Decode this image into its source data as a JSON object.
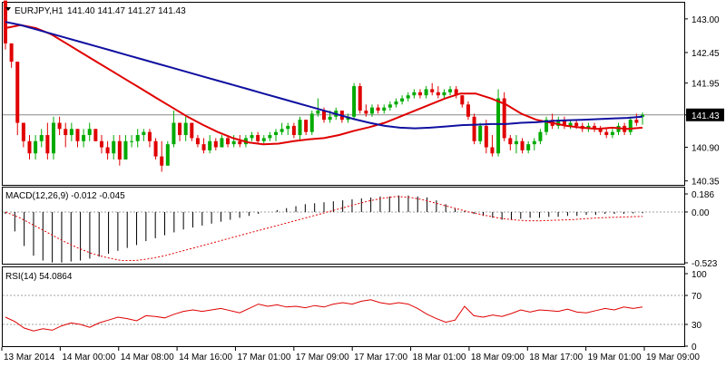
{
  "symbol_line": {
    "symbol": "EURJPY,H1",
    "ohlc": "141.40 141.47 141.27 141.43",
    "dropdown_icon": "triangle-down-icon"
  },
  "current_price": "141.43",
  "colors": {
    "bull_candle": "#00aa00",
    "bear_candle": "#e00000",
    "ma_fast": "#e00000",
    "ma_slow": "#1010a0",
    "macd_hist": "#000000",
    "macd_signal": "#e00000",
    "rsi_line": "#e00000",
    "grid": "#a0a0a0",
    "price_badge": "#000000"
  },
  "x_labels": [
    "13 Mar 2014",
    "14 Mar 00:00",
    "14 Mar 08:00",
    "14 Mar 16:00",
    "17 Mar 01:00",
    "17 Mar 09:00",
    "17 Mar 17:00",
    "18 Mar 01:00",
    "18 Mar 09:00",
    "18 Mar 17:00",
    "19 Mar 01:00",
    "19 Mar 09:00"
  ],
  "chart_data": [
    {
      "type": "candlestick",
      "title": "EURJPY,H1",
      "ylim": [
        140.3,
        143.25
      ],
      "y_ticks": [
        "143.00",
        "142.45",
        "141.95",
        "141.43",
        "140.90",
        "140.35"
      ],
      "current_price": 141.43,
      "candles_ohlc": [
        [
          143.3,
          143.3,
          142.5,
          142.6
        ],
        [
          142.6,
          142.6,
          142.2,
          142.3
        ],
        [
          142.3,
          142.3,
          141.1,
          141.3
        ],
        [
          141.3,
          141.3,
          140.9,
          141.0
        ],
        [
          141.0,
          141.1,
          140.7,
          140.8
        ],
        [
          140.8,
          141.1,
          140.7,
          141.0
        ],
        [
          141.0,
          141.2,
          140.9,
          141.1
        ],
        [
          141.1,
          141.3,
          140.7,
          140.8
        ],
        [
          140.8,
          141.4,
          140.7,
          141.3
        ],
        [
          141.3,
          141.4,
          141.1,
          141.2
        ],
        [
          141.2,
          141.3,
          140.9,
          141.1
        ],
        [
          141.1,
          141.3,
          141.0,
          141.2
        ],
        [
          141.2,
          141.2,
          140.9,
          141.0
        ],
        [
          141.0,
          141.2,
          140.9,
          141.1
        ],
        [
          141.1,
          141.3,
          141.0,
          141.2
        ],
        [
          141.2,
          141.2,
          141.0,
          141.0
        ],
        [
          141.0,
          141.1,
          140.8,
          140.9
        ],
        [
          140.9,
          141.0,
          140.7,
          140.8
        ],
        [
          140.8,
          141.1,
          140.7,
          141.0
        ],
        [
          141.0,
          141.1,
          140.6,
          140.7
        ],
        [
          140.7,
          141.1,
          140.7,
          141.0
        ],
        [
          141.0,
          141.1,
          140.9,
          141.0
        ],
        [
          141.0,
          141.2,
          140.9,
          141.1
        ],
        [
          141.1,
          141.2,
          141.0,
          141.15
        ],
        [
          141.15,
          141.2,
          140.9,
          141.0
        ],
        [
          141.0,
          141.05,
          140.7,
          140.75
        ],
        [
          140.75,
          141.0,
          140.5,
          140.6
        ],
        [
          140.6,
          141.0,
          140.6,
          140.95
        ],
        [
          140.95,
          141.5,
          140.9,
          141.3
        ],
        [
          141.3,
          141.3,
          141.0,
          141.1
        ],
        [
          141.1,
          141.4,
          141.0,
          141.3
        ],
        [
          141.3,
          141.3,
          141.0,
          141.05
        ],
        [
          141.05,
          141.1,
          140.9,
          140.95
        ],
        [
          140.95,
          141.05,
          140.8,
          140.85
        ],
        [
          140.85,
          141.1,
          140.8,
          141.0
        ],
        [
          141.0,
          141.05,
          140.85,
          140.9
        ],
        [
          140.9,
          141.1,
          140.9,
          141.05
        ],
        [
          141.05,
          141.1,
          140.9,
          140.95
        ],
        [
          140.95,
          141.1,
          140.9,
          141.0
        ],
        [
          141.0,
          141.1,
          140.9,
          140.95
        ],
        [
          140.95,
          141.1,
          140.9,
          141.05
        ],
        [
          141.05,
          141.15,
          141.0,
          141.1
        ],
        [
          141.1,
          141.15,
          140.95,
          141.0
        ],
        [
          141.0,
          141.1,
          140.95,
          141.05
        ],
        [
          141.05,
          141.15,
          141.0,
          141.1
        ],
        [
          141.1,
          141.2,
          141.0,
          141.15
        ],
        [
          141.15,
          141.3,
          141.1,
          141.2
        ],
        [
          141.2,
          141.3,
          141.1,
          141.25
        ],
        [
          141.25,
          141.3,
          141.05,
          141.1
        ],
        [
          141.1,
          141.4,
          141.0,
          141.35
        ],
        [
          141.35,
          141.35,
          141.1,
          141.15
        ],
        [
          141.15,
          141.5,
          141.1,
          141.45
        ],
        [
          141.45,
          141.7,
          141.4,
          141.5
        ],
        [
          141.5,
          141.55,
          141.3,
          141.35
        ],
        [
          141.35,
          141.5,
          141.3,
          141.4
        ],
        [
          141.4,
          141.55,
          141.35,
          141.5
        ],
        [
          141.5,
          141.5,
          141.3,
          141.35
        ],
        [
          141.35,
          141.45,
          141.3,
          141.4
        ],
        [
          141.4,
          141.95,
          141.35,
          141.9
        ],
        [
          141.9,
          141.95,
          141.45,
          141.5
        ],
        [
          141.5,
          141.6,
          141.4,
          141.45
        ],
        [
          141.45,
          141.6,
          141.4,
          141.55
        ],
        [
          141.55,
          141.6,
          141.45,
          141.5
        ],
        [
          141.5,
          141.6,
          141.45,
          141.55
        ],
        [
          141.55,
          141.65,
          141.5,
          141.6
        ],
        [
          141.6,
          141.7,
          141.55,
          141.65
        ],
        [
          141.65,
          141.75,
          141.6,
          141.7
        ],
        [
          141.7,
          141.8,
          141.65,
          141.75
        ],
        [
          141.75,
          141.85,
          141.7,
          141.8
        ],
        [
          141.8,
          141.85,
          141.7,
          141.75
        ],
        [
          141.75,
          141.9,
          141.7,
          141.85
        ],
        [
          141.85,
          141.95,
          141.75,
          141.8
        ],
        [
          141.8,
          141.9,
          141.7,
          141.75
        ],
        [
          141.75,
          141.85,
          141.7,
          141.8
        ],
        [
          141.8,
          141.9,
          141.75,
          141.85
        ],
        [
          141.85,
          141.9,
          141.7,
          141.75
        ],
        [
          141.75,
          141.75,
          141.55,
          141.6
        ],
        [
          141.6,
          141.65,
          141.35,
          141.4
        ],
        [
          141.4,
          141.45,
          140.95,
          141.0
        ],
        [
          141.0,
          141.3,
          140.95,
          141.25
        ],
        [
          141.25,
          141.35,
          140.8,
          140.9
        ],
        [
          140.9,
          141.1,
          140.75,
          140.8
        ],
        [
          140.8,
          141.85,
          140.75,
          141.7
        ],
        [
          141.7,
          141.8,
          141.0,
          141.05
        ],
        [
          141.05,
          141.1,
          140.85,
          140.95
        ],
        [
          140.95,
          141.1,
          140.8,
          141.0
        ],
        [
          141.0,
          141.05,
          140.8,
          140.85
        ],
        [
          140.85,
          141.0,
          140.8,
          140.95
        ],
        [
          140.95,
          141.05,
          140.85,
          141.0
        ],
        [
          141.0,
          141.2,
          140.95,
          141.15
        ],
        [
          141.15,
          141.4,
          141.1,
          141.35
        ],
        [
          141.35,
          141.45,
          141.2,
          141.25
        ],
        [
          141.25,
          141.4,
          141.2,
          141.35
        ],
        [
          141.35,
          141.4,
          141.2,
          141.25
        ],
        [
          141.25,
          141.35,
          141.2,
          141.3
        ],
        [
          141.3,
          141.35,
          141.2,
          141.25
        ],
        [
          141.25,
          141.3,
          141.15,
          141.2
        ],
        [
          141.2,
          141.3,
          141.15,
          141.25
        ],
        [
          141.25,
          141.3,
          141.15,
          141.2
        ],
        [
          141.2,
          141.25,
          141.1,
          141.15
        ],
        [
          141.15,
          141.2,
          141.05,
          141.1
        ],
        [
          141.1,
          141.2,
          141.05,
          141.15
        ],
        [
          141.15,
          141.3,
          141.1,
          141.25
        ],
        [
          141.25,
          141.3,
          141.1,
          141.15
        ],
        [
          141.15,
          141.4,
          141.1,
          141.35
        ],
        [
          141.35,
          141.45,
          141.25,
          141.3
        ],
        [
          141.4,
          141.47,
          141.27,
          141.43
        ]
      ],
      "series": [
        {
          "values": [
            142.85,
            142.9,
            142.85,
            142.75,
            142.6,
            142.45,
            142.3,
            142.15,
            142.0,
            141.85,
            141.7,
            141.55,
            141.4,
            141.27,
            141.15,
            141.05,
            140.98,
            140.95,
            140.96,
            141.0,
            141.03,
            141.05,
            141.1,
            141.17,
            141.23,
            141.3,
            141.4,
            141.5,
            141.6,
            141.7,
            141.78,
            141.78,
            141.7,
            141.6,
            141.45,
            141.35,
            141.3,
            141.25,
            141.22,
            141.2,
            141.22,
            141.2,
            141.22
          ]
        },
        {
          "values": [
            142.95,
            142.9,
            142.83,
            142.76,
            142.69,
            142.62,
            142.55,
            142.48,
            142.41,
            142.34,
            142.27,
            142.2,
            142.13,
            142.06,
            141.99,
            141.92,
            141.85,
            141.78,
            141.71,
            141.64,
            141.57,
            141.5,
            141.43,
            141.36,
            141.3,
            141.25,
            141.22,
            141.21,
            141.22,
            141.24,
            141.26,
            141.27,
            141.28,
            141.28,
            141.3,
            141.31,
            141.33,
            141.34,
            141.35,
            141.36,
            141.37,
            141.38,
            141.4
          ]
        }
      ]
    },
    {
      "type": "bar",
      "title": "MACD(12,26,9)",
      "header": "MACD(12,26,9) -0.012 -0.045",
      "ylim": [
        -0.523,
        0.186
      ],
      "y_ticks": [
        "0.186",
        "0.00",
        "-0.523"
      ],
      "series": [
        {
          "name": "MACD",
          "values": [
            -0.02,
            -0.2,
            -0.35,
            -0.45,
            -0.5,
            -0.52,
            -0.52,
            -0.51,
            -0.5,
            -0.48,
            -0.46,
            -0.43,
            -0.4,
            -0.37,
            -0.34,
            -0.3,
            -0.27,
            -0.24,
            -0.21,
            -0.18,
            -0.16,
            -0.14,
            -0.12,
            -0.1,
            -0.08,
            -0.06,
            -0.04,
            -0.02,
            0.0,
            0.02,
            0.04,
            0.06,
            0.08,
            0.09,
            0.1,
            0.11,
            0.12,
            0.13,
            0.14,
            0.15,
            0.16,
            0.16,
            0.17,
            0.17,
            0.16,
            0.15,
            0.12,
            0.08,
            0.04,
            0.01,
            -0.02,
            -0.04,
            -0.06,
            -0.08,
            -0.08,
            -0.07,
            -0.06,
            -0.06,
            -0.05,
            -0.05,
            -0.04,
            -0.04,
            -0.03,
            -0.03,
            -0.02,
            -0.02,
            -0.02,
            -0.015,
            -0.012
          ]
        },
        {
          "name": "Signal",
          "values": [
            0.0,
            -0.06,
            -0.14,
            -0.22,
            -0.3,
            -0.37,
            -0.43,
            -0.47,
            -0.5,
            -0.5,
            -0.48,
            -0.45,
            -0.41,
            -0.37,
            -0.33,
            -0.29,
            -0.25,
            -0.21,
            -0.17,
            -0.13,
            -0.09,
            -0.05,
            -0.01,
            0.03,
            0.07,
            0.11,
            0.14,
            0.16,
            0.15,
            0.12,
            0.08,
            0.04,
            0.0,
            -0.03,
            -0.06,
            -0.08,
            -0.09,
            -0.09,
            -0.085,
            -0.08,
            -0.07,
            -0.06,
            -0.055,
            -0.05,
            -0.045
          ]
        }
      ]
    },
    {
      "type": "line",
      "title": "RSI(14)",
      "header": "RSI(14) 54.0864",
      "ylim": [
        0,
        100
      ],
      "y_ticks": [
        "100",
        "70",
        "30",
        "0"
      ],
      "levels": [
        70,
        30
      ],
      "series": [
        {
          "name": "RSI(14)",
          "values": [
            40,
            34,
            25,
            21,
            24,
            22,
            28,
            32,
            30,
            26,
            32,
            36,
            40,
            38,
            35,
            42,
            41,
            39,
            44,
            48,
            50,
            48,
            50,
            52,
            49,
            46,
            52,
            58,
            55,
            57,
            54,
            55,
            53,
            56,
            54,
            58,
            60,
            58,
            62,
            64,
            60,
            58,
            60,
            58,
            52,
            44,
            38,
            33,
            36,
            55,
            42,
            40,
            43,
            41,
            45,
            50,
            47,
            50,
            49,
            48,
            51,
            47,
            46,
            49,
            52,
            50,
            54,
            52,
            54
          ]
        }
      ]
    }
  ]
}
